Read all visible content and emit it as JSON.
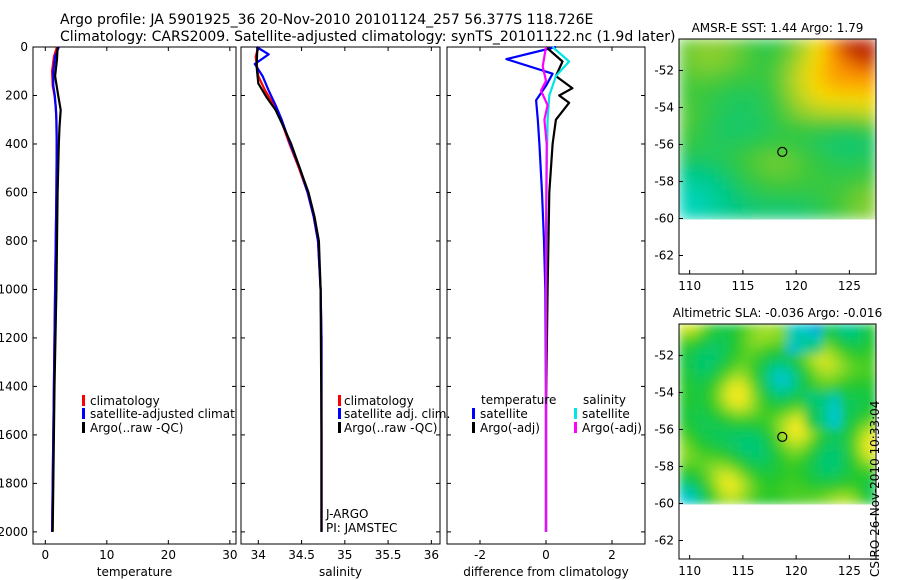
{
  "header": {
    "line1": "Argo profile: JA 5901925_36 20-Nov-2010 20101124_257 56.377S 118.726E",
    "line2": "Climatology: CARS2009. Satellite-adjusted climatology: synTS_20101122.nc (1.9d later)"
  },
  "credit": "CSIRO 26-Nov-2010 10:33:04",
  "colors": {
    "climatology": "#ff0000",
    "satellite": "#0000ff",
    "argo": "#000000",
    "satellite_sal": "#00e5e5",
    "argo_sal": "#ff00ff"
  },
  "chart_data": [
    {
      "type": "line",
      "id": "temperature",
      "xlabel": "temperature",
      "xlim": [
        -2,
        31
      ],
      "ylim": [
        0,
        2050
      ],
      "ylabel": "",
      "y_reversed": true,
      "xticks": [
        0,
        10,
        20,
        30
      ],
      "xtick_labels": [
        "0",
        "10",
        "20",
        "30"
      ],
      "yticks": [
        0,
        200,
        400,
        600,
        800,
        1000,
        1200,
        1400,
        1600,
        1800,
        2000
      ],
      "ytick_labels": [
        "0",
        "200",
        "400",
        "600",
        "800",
        "1000",
        "1200",
        "1400",
        "1600",
        "1800",
        "2000"
      ],
      "legend": [
        "climatology",
        "satellite-adjusted climatology",
        "Argo(..raw -QC)"
      ],
      "series": [
        {
          "name": "climatology",
          "color_key": "climatology",
          "x": [
            1.9,
            1.4,
            1.1,
            1.2,
            1.5,
            1.7,
            1.8,
            1.85,
            1.8,
            1.6,
            1.4,
            1.2,
            1.1
          ],
          "y": [
            0,
            40,
            100,
            160,
            200,
            250,
            300,
            400,
            600,
            1000,
            1400,
            1800,
            2000
          ]
        },
        {
          "name": "satellite-adjusted climatology",
          "color_key": "satellite",
          "x": [
            2.2,
            1.6,
            1.3,
            1.3,
            1.55,
            1.7,
            1.8,
            1.85,
            1.8,
            1.6,
            1.4,
            1.2,
            1.1
          ],
          "y": [
            0,
            40,
            100,
            160,
            200,
            250,
            300,
            400,
            600,
            1000,
            1400,
            1800,
            2000
          ]
        },
        {
          "name": "Argo(..raw -QC)",
          "color_key": "argo",
          "x": [
            2.0,
            1.9,
            1.6,
            2.1,
            2.5,
            2.3,
            2.2,
            2.0,
            1.8,
            1.5,
            1.3,
            1.2
          ],
          "y": [
            0,
            50,
            120,
            200,
            260,
            330,
            400,
            600,
            1000,
            1400,
            1800,
            2000
          ]
        }
      ]
    },
    {
      "type": "line",
      "id": "salinity",
      "xlabel": "salinity",
      "xlim": [
        33.8,
        36.1
      ],
      "ylim": [
        0,
        2050
      ],
      "y_reversed": true,
      "xticks": [
        34,
        34.5,
        35,
        35.5,
        36
      ],
      "xtick_labels": [
        "34",
        "34.5",
        "35",
        "35.5",
        "36"
      ],
      "legend": [
        "climatology",
        "satellite adj. clim.",
        "Argo(..raw -QC)"
      ],
      "annotations": [
        "J-ARGO",
        "PI: JAMSTEC"
      ],
      "series": [
        {
          "name": "climatology",
          "color_key": "climatology",
          "x": [
            34.0,
            33.97,
            34.0,
            34.08,
            34.18,
            34.26,
            34.36,
            34.47,
            34.57,
            34.64,
            34.69,
            34.72,
            34.73,
            34.73,
            34.73
          ],
          "y": [
            0,
            40,
            120,
            180,
            240,
            300,
            400,
            500,
            600,
            700,
            800,
            1000,
            1200,
            1600,
            2000
          ]
        },
        {
          "name": "satellite adj. clim.",
          "color_key": "satellite",
          "x": [
            33.98,
            34.12,
            33.96,
            34.05,
            34.12,
            34.2,
            34.27,
            34.37,
            34.48,
            34.57,
            34.64,
            34.69,
            34.72,
            34.73,
            34.73,
            34.73
          ],
          "y": [
            0,
            30,
            70,
            120,
            180,
            240,
            300,
            400,
            500,
            600,
            700,
            800,
            1000,
            1200,
            1600,
            2000
          ]
        },
        {
          "name": "Argo(..raw -QC)",
          "color_key": "argo",
          "x": [
            33.99,
            33.98,
            34.0,
            34.1,
            34.2,
            34.28,
            34.38,
            34.48,
            34.58,
            34.65,
            34.7,
            34.72,
            34.73,
            34.73
          ],
          "y": [
            0,
            80,
            150,
            210,
            260,
            320,
            400,
            500,
            600,
            700,
            800,
            1000,
            1600,
            2000
          ]
        }
      ]
    },
    {
      "type": "line",
      "id": "difference",
      "xlabel": "difference from climatology",
      "xlim": [
        -3,
        3
      ],
      "ylim": [
        0,
        2050
      ],
      "y_reversed": true,
      "xticks": [
        -2,
        0,
        2
      ],
      "xtick_labels": [
        "-2",
        "0",
        "2"
      ],
      "legend_titles": [
        "temperature",
        "salinity"
      ],
      "legend": [
        "satellite",
        "Argo(-adj)",
        "satellite",
        "Argo(-adj)"
      ],
      "series": [
        {
          "name": "temperature satellite",
          "color_key": "satellite",
          "x": [
            0.3,
            -1.2,
            0.2,
            0.0,
            -0.3,
            -0.25,
            -0.2,
            -0.12,
            -0.06,
            -0.02,
            0.0,
            0.0
          ],
          "y": [
            0,
            50,
            110,
            160,
            220,
            300,
            400,
            600,
            800,
            1000,
            1500,
            2000
          ]
        },
        {
          "name": "temperature Argo(-adj)",
          "color_key": "argo",
          "x": [
            0.0,
            0.5,
            0.3,
            0.8,
            0.4,
            0.7,
            0.3,
            0.2,
            0.1,
            0.05,
            0.0,
            0.0
          ],
          "y": [
            0,
            60,
            120,
            170,
            200,
            230,
            300,
            400,
            600,
            1000,
            1500,
            2000
          ]
        },
        {
          "name": "salinity satellite",
          "color_key": "satellite_sal",
          "x": [
            0.2,
            0.7,
            0.3,
            0.1,
            0.05,
            0.02,
            0.0,
            0.0
          ],
          "y": [
            0,
            60,
            120,
            200,
            300,
            500,
            1000,
            2000
          ]
        },
        {
          "name": "salinity Argo(-adj)",
          "color_key": "argo_sal",
          "x": [
            0.0,
            -0.1,
            0.0,
            -0.15,
            0.05,
            -0.05,
            0.02,
            0.0,
            0.0
          ],
          "y": [
            0,
            80,
            140,
            180,
            240,
            300,
            400,
            800,
            2000
          ]
        }
      ]
    },
    {
      "type": "heatmap",
      "id": "sst-map",
      "title": "AMSR-E SST: 1.44 Argo: 1.79",
      "xlim": [
        109,
        127.5
      ],
      "ylim": [
        -63,
        -50.3
      ],
      "data_ylim": [
        -60,
        -50.3
      ],
      "xticks": [
        110,
        115,
        120,
        125
      ],
      "xtick_labels": [
        "110",
        "115",
        "120",
        "125"
      ],
      "yticks": [
        -52,
        -54,
        -56,
        -58,
        -60,
        -62
      ],
      "ytick_labels": [
        "-52",
        "-54",
        "-56",
        "-58",
        "-60",
        "-62"
      ],
      "marker": {
        "lon": 118.7,
        "lat": -56.4
      }
    },
    {
      "type": "heatmap",
      "id": "sla-map",
      "title": "Altimetric SLA: -0.036 Argo: -0.016",
      "xlim": [
        109,
        127.5
      ],
      "ylim": [
        -63,
        -50.3
      ],
      "data_ylim": [
        -60,
        -50.3
      ],
      "xticks": [
        110,
        115,
        120,
        125
      ],
      "xtick_labels": [
        "110",
        "115",
        "120",
        "125"
      ],
      "yticks": [
        -52,
        -54,
        -56,
        -58,
        -60,
        -62
      ],
      "ytick_labels": [
        "-52",
        "-54",
        "-56",
        "-58",
        "-60",
        "-62"
      ],
      "marker": {
        "lon": 118.7,
        "lat": -56.4
      }
    }
  ]
}
